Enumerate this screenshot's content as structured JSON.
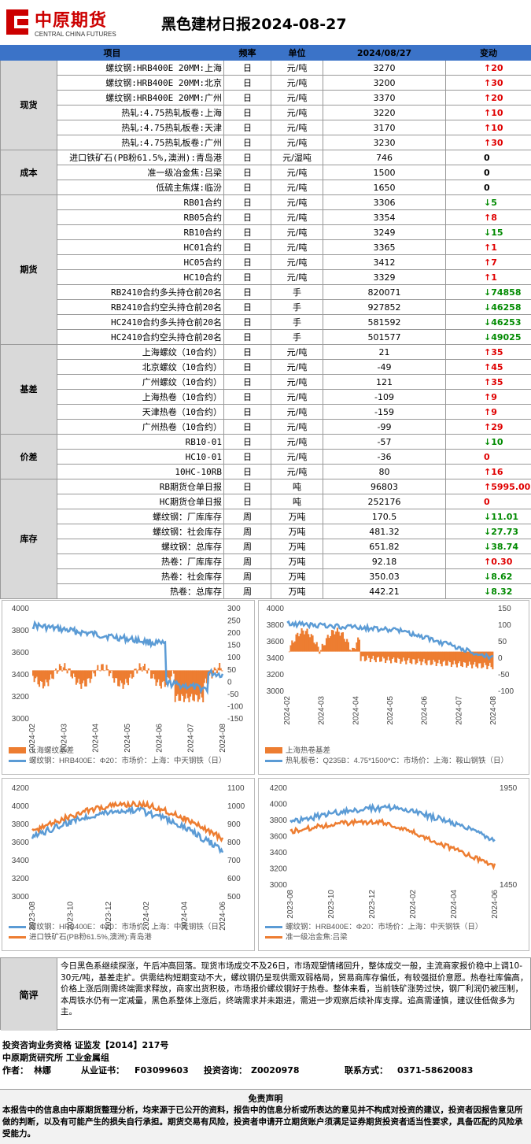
{
  "header": {
    "logo_cn": "中原期货",
    "logo_en": "CENTRAL CHINA FUTURES",
    "title": "黑色建材日报2024-08-27"
  },
  "table": {
    "columns": [
      "项目",
      "频率",
      "单位",
      "2024/08/27",
      "变动"
    ],
    "groups": [
      {
        "name": "现货",
        "rows": [
          {
            "item": "螺纹钢:HRB400E 20MM:上海",
            "freq": "日",
            "unit": "元/吨",
            "value": "3270",
            "dir": "up",
            "change": "20"
          },
          {
            "item": "螺纹钢:HRB400E 20MM:北京",
            "freq": "日",
            "unit": "元/吨",
            "value": "3200",
            "dir": "up",
            "change": "30"
          },
          {
            "item": "螺纹钢:HRB400E 20MM:广州",
            "freq": "日",
            "unit": "元/吨",
            "value": "3370",
            "dir": "up",
            "change": "20"
          },
          {
            "item": "热轧:4.75热轧板卷:上海",
            "freq": "日",
            "unit": "元/吨",
            "value": "3220",
            "dir": "up",
            "change": "10"
          },
          {
            "item": "热轧:4.75热轧板卷:天津",
            "freq": "日",
            "unit": "元/吨",
            "value": "3170",
            "dir": "up",
            "change": "10"
          },
          {
            "item": "热轧:4.75热轧板卷:广州",
            "freq": "日",
            "unit": "元/吨",
            "value": "3230",
            "dir": "up",
            "change": "30"
          }
        ]
      },
      {
        "name": "成本",
        "rows": [
          {
            "item": "进口铁矿石(PB粉61.5%,澳洲):青岛港",
            "freq": "日",
            "unit": "元/湿吨",
            "value": "746",
            "dir": "flat",
            "change": "0"
          },
          {
            "item": "准一级冶金焦:吕梁",
            "freq": "日",
            "unit": "元/吨",
            "value": "1500",
            "dir": "flat",
            "change": "0"
          },
          {
            "item": "低硫主焦煤:临汾",
            "freq": "日",
            "unit": "元/吨",
            "value": "1650",
            "dir": "flat",
            "change": "0"
          }
        ]
      },
      {
        "name": "期货",
        "rows": [
          {
            "item": "RB01合约",
            "freq": "日",
            "unit": "元/吨",
            "value": "3306",
            "dir": "dn",
            "change": "5"
          },
          {
            "item": "RB05合约",
            "freq": "日",
            "unit": "元/吨",
            "value": "3354",
            "dir": "up",
            "change": "8"
          },
          {
            "item": "RB10合约",
            "freq": "日",
            "unit": "元/吨",
            "value": "3249",
            "dir": "dn",
            "change": "15"
          },
          {
            "item": "HC01合约",
            "freq": "日",
            "unit": "元/吨",
            "value": "3365",
            "dir": "up",
            "change": "1"
          },
          {
            "item": "HC05合约",
            "freq": "日",
            "unit": "元/吨",
            "value": "3412",
            "dir": "up",
            "change": "7"
          },
          {
            "item": "HC10合约",
            "freq": "日",
            "unit": "元/吨",
            "value": "3329",
            "dir": "up",
            "change": "1"
          },
          {
            "item": "RB2410合约多头持仓前20名",
            "freq": "日",
            "unit": "手",
            "value": "820071",
            "dir": "dn",
            "change": "74858"
          },
          {
            "item": "RB2410合约空头持仓前20名",
            "freq": "日",
            "unit": "手",
            "value": "927852",
            "dir": "dn",
            "change": "46258"
          },
          {
            "item": "HC2410合约多头持仓前20名",
            "freq": "日",
            "unit": "手",
            "value": "581592",
            "dir": "dn",
            "change": "46253"
          },
          {
            "item": "HC2410合约空头持仓前20名",
            "freq": "日",
            "unit": "手",
            "value": "501577",
            "dir": "dn",
            "change": "49025"
          }
        ]
      },
      {
        "name": "基差",
        "rows": [
          {
            "item": "上海螺纹（10合约）",
            "freq": "日",
            "unit": "元/吨",
            "value": "21",
            "dir": "up",
            "change": "35"
          },
          {
            "item": "北京螺纹（10合约）",
            "freq": "日",
            "unit": "元/吨",
            "value": "-49",
            "dir": "up",
            "change": "45"
          },
          {
            "item": "广州螺纹（10合约）",
            "freq": "日",
            "unit": "元/吨",
            "value": "121",
            "dir": "up",
            "change": "35"
          },
          {
            "item": "上海热卷（10合约）",
            "freq": "日",
            "unit": "元/吨",
            "value": "-109",
            "dir": "up",
            "change": "9"
          },
          {
            "item": "天津热卷（10合约）",
            "freq": "日",
            "unit": "元/吨",
            "value": "-159",
            "dir": "up",
            "change": "9"
          },
          {
            "item": "广州热卷（10合约）",
            "freq": "日",
            "unit": "元/吨",
            "value": "-99",
            "dir": "up",
            "change": "29"
          }
        ]
      },
      {
        "name": "价差",
        "rows": [
          {
            "item": "RB10-01",
            "freq": "日",
            "unit": "元/吨",
            "value": "-57",
            "dir": "dn",
            "change": "10"
          },
          {
            "item": "HC10-01",
            "freq": "日",
            "unit": "元/吨",
            "value": "-36",
            "dir": "flat_red",
            "change": "0"
          },
          {
            "item": "10HC-10RB",
            "freq": "日",
            "unit": "元/吨",
            "value": "80",
            "dir": "up",
            "change": "16"
          }
        ]
      },
      {
        "name": "库存",
        "rows": [
          {
            "item": "RB期货仓单日报",
            "freq": "日",
            "unit": "吨",
            "value": "96803",
            "dir": "up",
            "change": "5995.00"
          },
          {
            "item": "HC期货仓单日报",
            "freq": "日",
            "unit": "吨",
            "value": "252176",
            "dir": "flat_red",
            "change": "0"
          },
          {
            "item": "螺纹钢：厂库库存",
            "freq": "周",
            "unit": "万吨",
            "value": "170.5",
            "dir": "dn",
            "change": "11.01"
          },
          {
            "item": "螺纹钢：社会库存",
            "freq": "周",
            "unit": "万吨",
            "value": "481.32",
            "dir": "dn",
            "change": "27.73"
          },
          {
            "item": "螺纹钢：总库存",
            "freq": "周",
            "unit": "万吨",
            "value": "651.82",
            "dir": "dn",
            "change": "38.74"
          },
          {
            "item": "热卷：厂库库存",
            "freq": "周",
            "unit": "万吨",
            "value": "92.18",
            "dir": "up",
            "change": "0.30"
          },
          {
            "item": "热卷：社会库存",
            "freq": "周",
            "unit": "万吨",
            "value": "350.03",
            "dir": "dn",
            "change": "8.62"
          },
          {
            "item": "热卷：总库存",
            "freq": "周",
            "unit": "万吨",
            "value": "442.21",
            "dir": "dn",
            "change": "8.32"
          }
        ]
      }
    ]
  },
  "colors": {
    "blue": "#5b9bd5",
    "orange": "#ed7d31",
    "up": "#e00000",
    "down": "#008a00",
    "header": "#3b73c8"
  },
  "chart_data": [
    {
      "type": "line",
      "yleft": [
        "4000",
        "3800",
        "3600",
        "3400",
        "3200",
        "3000"
      ],
      "yright": [
        "300",
        "250",
        "200",
        "150",
        "100",
        "50",
        "0",
        "-50",
        "-100",
        "-150"
      ],
      "x": [
        "2024-02",
        "2024-03",
        "2024-04",
        "2024-05",
        "2024-06",
        "2024-07",
        "2024-08"
      ],
      "legend": [
        "上海螺纹基差",
        "螺纹钢：HRB400E：Φ20：市场价：上海：中天钢铁（日）"
      ]
    },
    {
      "type": "line",
      "yleft": [
        "4000",
        "3800",
        "3600",
        "3400",
        "3200",
        "3000"
      ],
      "yright": [
        "150",
        "100",
        "50",
        "0",
        "-50",
        "-100"
      ],
      "x": [
        "2024-02",
        "2024-03",
        "2024-04",
        "2024-05",
        "2024-06",
        "2024-07",
        "2024-08"
      ],
      "legend": [
        "上海热卷基差",
        "热轧板卷：Q235B：4.75*1500*C：市场价：上海：鞍山钢铁（日）"
      ]
    },
    {
      "type": "line",
      "yleft": [
        "4200",
        "4000",
        "3800",
        "3600",
        "3400",
        "3200",
        "3000"
      ],
      "yright": [
        "1100",
        "1000",
        "900",
        "800",
        "700",
        "600",
        "500"
      ],
      "x": [
        "2023-08",
        "2023-10",
        "2023-12",
        "2024-02",
        "2024-04",
        "2024-06"
      ],
      "legend": [
        "螺纹钢：HRB400E：Φ20：市场价：上海：中天钢铁（日）",
        "进口铁矿石(PB粉61.5%,澳洲):青岛港"
      ]
    },
    {
      "type": "line",
      "yleft": [
        "4200",
        "4000",
        "3800",
        "3600",
        "3400",
        "3200",
        "3000"
      ],
      "yright": [
        "1950",
        "1450"
      ],
      "x": [
        "2023-08",
        "2023-10",
        "2023-12",
        "2024-02",
        "2024-04",
        "2024-06"
      ],
      "legend": [
        "螺纹钢：HRB400E：Φ20：市场价：上海：中天钢铁（日）",
        "准一级冶金焦:吕梁"
      ]
    }
  ],
  "comment": {
    "label": "简评",
    "text": "今日黑色系继续探涨，午后冲高回落。现货市场成交不及26日，市场观望情绪回升，整体成交一般，主流商家报价稳中上调10-30元/吨，基差走扩。供需结构短期变动不大，螺纹钢仍呈现供需双弱格局，贸易商库存偏低，有较强挺价意愿。热卷社库偏高，价格上涨后刚需终端需求释放，商家出货积极，市场报价螺纹钢好于热卷。整体来看，当前铁矿涨势过快，钢厂利润仍被压制，本周铁水仍有一定减量，黑色系整体上涨后，终端需求并未跟进，需进一步观察后续补库支撑。追高需谨慎，建议佳低做多为主。"
  },
  "footer": {
    "line1": "投资咨询业务资格    证监发【2014】217号",
    "line2": "中原期货研究所    工业金属组",
    "author_label": "作者：",
    "author": "林娜",
    "cert_label": "从业证书：",
    "cert": "F03099603",
    "invest_label": "投资咨询：",
    "invest": "Z0020978",
    "contact_label": "联系方式：",
    "contact": "0371-58620083"
  },
  "disclaimer": {
    "title": "免责声明",
    "body": "本报告中的信息由中原期货整理分析，均来源于已公开的资料，报告中的信息分析或所表达的意见并不构成对投资的建议，投资者因报告意见所做的判断，以及有可能产生的损失自行承担。期货交易有风险，投资者申请开立期货账户须满足证券期货投资者适当性要求，具备匹配的风险承受能力。"
  }
}
